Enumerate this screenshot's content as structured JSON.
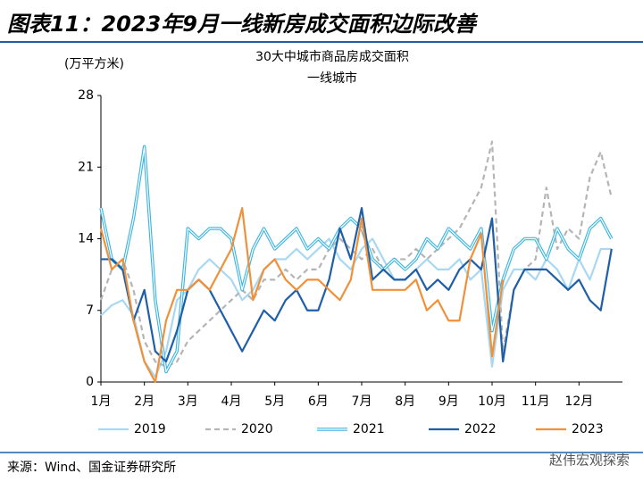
{
  "chart_data": {
    "type": "line",
    "title": "图表11：2023年9月一线新房成交面积边际改善",
    "subtitle": [
      "30大中城市商品房成交面积",
      "一线城市"
    ],
    "y_label": "(万平方米)",
    "source": "来源：Wind、国金证券研究所",
    "watermark": "赵伟宏观探索",
    "x": [
      1,
      1.25,
      1.5,
      1.75,
      2,
      2.25,
      2.5,
      2.75,
      3,
      3.25,
      3.5,
      3.75,
      4,
      4.25,
      4.5,
      4.75,
      5,
      5.25,
      5.5,
      5.75,
      6,
      6.25,
      6.5,
      6.75,
      7,
      7.25,
      7.5,
      7.75,
      8,
      8.25,
      8.5,
      8.75,
      9,
      9.25,
      9.5,
      9.75,
      10,
      10.25,
      10.5,
      10.75,
      11,
      11.25,
      11.5,
      11.75,
      12,
      12.25,
      12.5,
      12.75
    ],
    "xlim": [
      1,
      13
    ],
    "xticks": [
      {
        "value": 1,
        "label": "1月"
      },
      {
        "value": 2,
        "label": "2月"
      },
      {
        "value": 3,
        "label": "3月"
      },
      {
        "value": 4,
        "label": "4月"
      },
      {
        "value": 5,
        "label": "5月"
      },
      {
        "value": 6,
        "label": "6月"
      },
      {
        "value": 7,
        "label": "7月"
      },
      {
        "value": 8,
        "label": "8月"
      },
      {
        "value": 9,
        "label": "9月"
      },
      {
        "value": 10,
        "label": "10月"
      },
      {
        "value": 11,
        "label": "11月"
      },
      {
        "value": 12,
        "label": "12月"
      }
    ],
    "ylim": [
      0,
      28
    ],
    "yticks": [
      0,
      7,
      14,
      21,
      28
    ],
    "grid": false,
    "legend": "bottom",
    "series": [
      {
        "name": "2019",
        "color": "#a9d8f2",
        "style": "solid",
        "values": [
          6.5,
          7.5,
          8,
          6.5,
          2,
          0.5,
          3,
          8,
          9,
          11,
          12,
          11,
          10,
          8,
          9,
          11,
          12,
          12,
          13,
          12,
          13,
          14,
          12,
          11,
          13,
          14,
          12,
          10,
          10,
          11,
          12,
          11,
          11,
          12,
          10,
          11,
          1.5,
          9,
          11,
          11,
          10,
          12,
          11,
          9,
          12,
          10,
          13,
          13
        ]
      },
      {
        "name": "2020",
        "color": "#b5b5b5",
        "style": "dashed",
        "values": [
          8,
          11,
          12,
          9,
          4,
          2,
          1.5,
          2,
          4,
          5,
          6,
          7,
          8,
          9,
          8,
          10,
          10,
          11,
          10,
          11,
          11,
          13,
          14,
          13,
          12,
          13,
          11,
          12,
          12,
          13,
          12,
          13,
          14,
          15,
          17,
          19,
          23.5,
          3,
          9,
          11,
          12,
          19,
          13,
          15,
          14,
          20,
          22.5,
          18
        ]
      },
      {
        "name": "2021",
        "color": "#3fb6e0",
        "style": "double",
        "values": [
          17,
          12,
          11,
          16,
          23,
          8,
          1,
          3,
          15,
          14,
          15,
          15,
          14,
          9,
          13,
          15,
          13,
          14,
          15,
          13,
          14,
          13,
          15,
          16,
          15,
          12,
          11,
          12,
          11,
          12,
          14,
          13,
          15,
          14,
          13,
          15,
          5,
          10,
          13,
          14,
          14,
          12,
          15,
          13,
          12,
          15,
          16,
          14
        ]
      },
      {
        "name": "2022",
        "color": "#1f5fa8",
        "style": "solid",
        "values": [
          12,
          12,
          11,
          6,
          9,
          3,
          2,
          5,
          9,
          10,
          9,
          7,
          5,
          3,
          5,
          7,
          6,
          8,
          9,
          7,
          7,
          10,
          15,
          12,
          17,
          10,
          11,
          10,
          10,
          11,
          9,
          10,
          9,
          11,
          12,
          11,
          16,
          2,
          9,
          11,
          11,
          11,
          10,
          9,
          10,
          8,
          7,
          13
        ]
      },
      {
        "name": "2023",
        "color": "#f0913a",
        "style": "solid",
        "values": [
          15,
          11,
          12,
          6,
          2,
          0,
          6,
          9,
          9,
          10,
          9,
          11,
          13,
          17,
          8,
          11,
          12,
          10,
          9,
          10,
          10,
          9,
          8,
          10,
          16,
          9,
          9,
          9,
          9,
          10,
          7,
          8,
          6,
          6,
          12,
          14.5,
          2.5,
          10,
          null,
          null,
          null,
          null,
          null,
          null,
          null,
          null,
          null,
          null
        ]
      }
    ]
  }
}
